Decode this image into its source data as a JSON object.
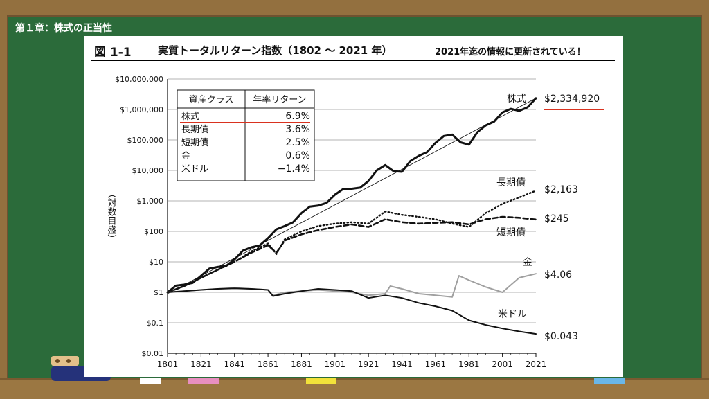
{
  "header": {
    "chapter_label": "第１章：株式の正当性"
  },
  "figure": {
    "number": "図 1-1",
    "title": "実質トータルリターン指数（1802 ～ 2021 年）",
    "note": "2021年迄の情報に更新されている！"
  },
  "chart_data": {
    "type": "line",
    "title": "実質トータルリターン指数（1802 ～ 2021 年）",
    "xlabel": "",
    "ylabel": "（対数目盛）",
    "yscale": "log",
    "xlim": [
      1801,
      2021
    ],
    "ylim": [
      0.01,
      10000000
    ],
    "x_ticks": [
      "1801",
      "1821",
      "1841",
      "1861",
      "1881",
      "1901",
      "1921",
      "1941",
      "1961",
      "1981",
      "2001",
      "2021"
    ],
    "y_ticks": [
      "$10,000,000",
      "$1,000,000",
      "$100,000",
      "$10,000",
      "$1,000",
      "$100",
      "$10",
      "$1",
      "$0.1",
      "$0.01"
    ],
    "grid": "horizontal",
    "series": [
      {
        "name": "株式",
        "end_label": "$2,334,920",
        "color": "#111111",
        "style": "solid-thick",
        "x": [
          1801,
          1811,
          1821,
          1831,
          1841,
          1851,
          1861,
          1871,
          1881,
          1891,
          1901,
          1911,
          1921,
          1931,
          1941,
          1951,
          1961,
          1971,
          1981,
          1991,
          2001,
          2011,
          2021
        ],
        "y": [
          1,
          1.8,
          3.5,
          6.8,
          12,
          30,
          60,
          150,
          400,
          700,
          1600,
          2500,
          4500,
          15000,
          9000,
          30000,
          80000,
          150000,
          70000,
          300000,
          800000,
          900000,
          2334920
        ]
      },
      {
        "name": "長期債",
        "end_label": "$2,163",
        "color": "#111111",
        "style": "dotted",
        "x": [
          1801,
          1811,
          1821,
          1831,
          1841,
          1851,
          1861,
          1866,
          1871,
          1881,
          1891,
          1901,
          1911,
          1921,
          1931,
          1941,
          1951,
          1961,
          1971,
          1981,
          1991,
          2001,
          2011,
          2021
        ],
        "y": [
          1,
          1.6,
          3,
          5.5,
          10,
          22,
          40,
          18,
          55,
          100,
          150,
          180,
          200,
          180,
          450,
          350,
          300,
          250,
          180,
          140,
          400,
          800,
          1300,
          2163
        ]
      },
      {
        "name": "短期債",
        "end_label": "$245",
        "color": "#111111",
        "style": "dashed",
        "x": [
          1801,
          1811,
          1821,
          1831,
          1841,
          1851,
          1861,
          1866,
          1871,
          1881,
          1891,
          1901,
          1911,
          1921,
          1931,
          1941,
          1951,
          1961,
          1971,
          1981,
          1991,
          2001,
          2011,
          2021
        ],
        "y": [
          1,
          1.6,
          3,
          5.5,
          10,
          20,
          35,
          20,
          50,
          80,
          110,
          140,
          170,
          140,
          250,
          200,
          180,
          190,
          200,
          170,
          250,
          300,
          280,
          245
        ]
      },
      {
        "name": "金",
        "end_label": "$4.06",
        "color": "#a0a0a0",
        "style": "solid",
        "x": [
          1801,
          1811,
          1821,
          1831,
          1841,
          1851,
          1861,
          1864,
          1871,
          1881,
          1891,
          1901,
          1911,
          1921,
          1931,
          1934,
          1941,
          1951,
          1961,
          1971,
          1975,
          1981,
          1991,
          2001,
          2011,
          2021
        ],
        "y": [
          1,
          1.1,
          1.2,
          1.3,
          1.4,
          1.3,
          1.2,
          0.8,
          1.0,
          1.1,
          1.2,
          1.1,
          1.0,
          0.8,
          0.9,
          1.6,
          1.3,
          0.9,
          0.8,
          0.7,
          3.5,
          2.5,
          1.5,
          1.0,
          3.0,
          4.06
        ]
      },
      {
        "name": "米ドル",
        "end_label": "$0.043",
        "color": "#111111",
        "style": "solid",
        "x": [
          1801,
          1811,
          1821,
          1831,
          1841,
          1851,
          1861,
          1864,
          1871,
          1881,
          1891,
          1901,
          1911,
          1921,
          1931,
          1941,
          1951,
          1961,
          1971,
          1981,
          1991,
          2001,
          2011,
          2021
        ],
        "y": [
          1,
          1.1,
          1.2,
          1.3,
          1.35,
          1.3,
          1.2,
          0.75,
          0.9,
          1.1,
          1.3,
          1.2,
          1.1,
          0.65,
          0.8,
          0.65,
          0.45,
          0.35,
          0.25,
          0.12,
          0.085,
          0.065,
          0.052,
          0.043
        ]
      }
    ],
    "legend_table": {
      "headers": [
        "資産クラス",
        "年率リターン"
      ],
      "rows": [
        {
          "asset": "株式",
          "return": "6.9%"
        },
        {
          "asset": "長期債",
          "return": "3.6%"
        },
        {
          "asset": "短期債",
          "return": "2.5%"
        },
        {
          "asset": "金",
          "return": "0.6%"
        },
        {
          "asset": "米ドル",
          "return": "−1.4%"
        }
      ]
    }
  },
  "accent_colors": {
    "underline": "#d9321f",
    "board": "#2b6b3a",
    "frame": "#93703f"
  },
  "chalk_colors": [
    "#ffffff",
    "#e88fc0",
    "#f2e23a",
    "#6ab7e8"
  ]
}
